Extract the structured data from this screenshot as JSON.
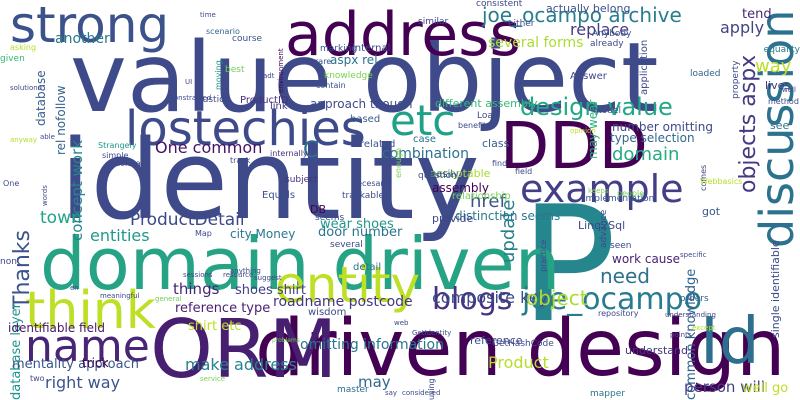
{
  "words": [
    {
      "text": "value object",
      "color": "#3e4a89",
      "vertical": false
    },
    {
      "text": "identity",
      "color": "#3e4a89",
      "vertical": false
    },
    {
      "text": "P",
      "color": "#25868e",
      "vertical": false
    },
    {
      "text": "domain driven",
      "color": "#26a384",
      "vertical": false
    },
    {
      "text": "driven design",
      "color": "#440154",
      "vertical": false
    },
    {
      "text": "ORM",
      "color": "#481f70",
      "vertical": false
    },
    {
      "text": "DDD",
      "color": "#440154",
      "vertical": false
    },
    {
      "text": "address",
      "color": "#440154",
      "vertical": false
    },
    {
      "text": "strong",
      "color": "#3b528b",
      "vertical": false
    },
    {
      "text": "lostechies",
      "color": "#3e4a89",
      "vertical": false
    },
    {
      "text": "entity",
      "color": "#bddf26",
      "vertical": false
    },
    {
      "text": "think",
      "color": "#bddf26",
      "vertical": false
    },
    {
      "text": "name",
      "color": "#482576",
      "vertical": false
    },
    {
      "text": "etc",
      "color": "#1fa187",
      "vertical": false
    },
    {
      "text": "example",
      "color": "#433e85",
      "vertical": false
    },
    {
      "text": "discussion",
      "color": "#2c728e",
      "vertical": true
    },
    {
      "text": "Id",
      "color": "#2e6e8e",
      "vertical": false
    },
    {
      "text": "joe_ocampo archive",
      "color": "#287d8e",
      "vertical": false
    },
    {
      "text": "blogs",
      "color": "#463480",
      "vertical": false
    },
    {
      "text": "joe_ocampo",
      "color": "#287c8e",
      "vertical": false
    },
    {
      "text": "design value",
      "color": "#22a884",
      "vertical": false
    },
    {
      "text": "Thanks",
      "color": "#3b528b",
      "vertical": true
    },
    {
      "text": "ProductDetail",
      "color": "#3e4989",
      "vertical": false
    },
    {
      "text": "entities",
      "color": "#1f9a8a",
      "vertical": false
    },
    {
      "text": "composite key",
      "color": "#3e4989",
      "vertical": false
    },
    {
      "text": "object",
      "color": "#addc30",
      "vertical": false
    },
    {
      "text": "objects aspx",
      "color": "#443983",
      "vertical": true
    },
    {
      "text": "update",
      "color": "#277f8e",
      "vertical": true
    },
    {
      "text": "make address",
      "color": "#26828e",
      "vertical": false
    },
    {
      "text": "right way",
      "color": "#39558c",
      "vertical": false
    },
    {
      "text": "domain",
      "color": "#25ab82",
      "vertical": false
    },
    {
      "text": "C",
      "color": "#2d708e",
      "vertical": false
    },
    {
      "text": "need",
      "color": "#2c718e",
      "vertical": false
    },
    {
      "text": "apply",
      "color": "#414487",
      "vertical": false
    },
    {
      "text": "way",
      "color": "#bddf26",
      "vertical": false
    },
    {
      "text": "replace",
      "color": "#443a83",
      "vertical": false
    },
    {
      "text": "several forms",
      "color": "#addc30",
      "vertical": false
    },
    {
      "text": "another",
      "color": "#29798e",
      "vertical": false
    },
    {
      "text": "One common",
      "color": "#471365",
      "vertical": false
    },
    {
      "text": "combination",
      "color": "#2c718e",
      "vertical": false
    },
    {
      "text": "things",
      "color": "#482576",
      "vertical": false
    },
    {
      "text": "town",
      "color": "#20a386",
      "vertical": false
    },
    {
      "text": "concept work",
      "color": "#25858e",
      "vertical": true
    },
    {
      "text": "database layer",
      "color": "#1f968b",
      "vertical": true
    },
    {
      "text": "database",
      "color": "#355f8d",
      "vertical": true
    },
    {
      "text": "rel nofollow",
      "color": "#33638d",
      "vertical": true
    },
    {
      "text": "common knowledge",
      "color": "#33638d",
      "vertical": true
    },
    {
      "text": "roadname postcode",
      "color": "#453781",
      "vertical": false
    },
    {
      "text": "omitting information",
      "color": "#2a768e",
      "vertical": false
    },
    {
      "text": "mentality approach",
      "color": "#39568c",
      "vertical": false
    },
    {
      "text": "identifiable field",
      "color": "#481769",
      "vertical": false
    },
    {
      "text": "shirt etc",
      "color": "#bddf26",
      "vertical": false
    },
    {
      "text": "shoes shirt",
      "color": "#433e85",
      "vertical": false
    },
    {
      "text": "reference type",
      "color": "#481f70",
      "vertical": false
    },
    {
      "text": "person will",
      "color": "#433e85",
      "vertical": false
    },
    {
      "text": "may",
      "color": "#31688e",
      "vertical": false
    },
    {
      "text": "Product",
      "color": "#b5de2b",
      "vertical": false
    },
    {
      "text": "href",
      "color": "#3b528b",
      "vertical": false
    },
    {
      "text": "work cause",
      "color": "#482475",
      "vertical": false
    },
    {
      "text": "door number",
      "color": "#2b748e",
      "vertical": false
    },
    {
      "text": "approach though",
      "color": "#3e4a89",
      "vertical": false
    },
    {
      "text": "number omitting",
      "color": "#3e4989",
      "vertical": false
    },
    {
      "text": "type selection",
      "color": "#31688e",
      "vertical": false
    },
    {
      "text": "wear shoes",
      "color": "#1f978b",
      "vertical": false
    },
    {
      "text": "city Money",
      "color": "#2a788e",
      "vertical": false
    },
    {
      "text": "aspx rel",
      "color": "#2c728e",
      "vertical": false
    },
    {
      "text": "tend",
      "color": "#482677",
      "vertical": false
    },
    {
      "text": "Linq2Sql",
      "color": "#3e4989",
      "vertical": false
    },
    {
      "text": "different assembly",
      "color": "#35b779",
      "vertical": false
    },
    {
      "text": "distinction seems",
      "color": "#2a788e",
      "vertical": false
    },
    {
      "text": "assembly",
      "color": "#440154",
      "vertical": false
    },
    {
      "text": "acceptable",
      "color": "#a8db34",
      "vertical": false
    },
    {
      "text": "relationship",
      "color": "#7ad151",
      "vertical": false
    },
    {
      "text": "well go",
      "color": "#bddf26",
      "vertical": false
    },
    {
      "text": "equality",
      "color": "#2a788e",
      "vertical": false
    },
    {
      "text": "internal",
      "color": "#404688",
      "vertical": false
    },
    {
      "text": "trick",
      "color": "#440154",
      "vertical": false
    },
    {
      "text": "class",
      "color": "#33638d",
      "vertical": false
    },
    {
      "text": "related",
      "color": "#3a548c",
      "vertical": false
    },
    {
      "text": "DB",
      "color": "#440154",
      "vertical": false
    },
    {
      "text": "ProductID",
      "color": "#46337e",
      "vertical": false
    },
    {
      "text": "Equals",
      "color": "#3b528b",
      "vertical": false
    },
    {
      "text": "case",
      "color": "#2d708e",
      "vertical": false
    },
    {
      "text": "based",
      "color": "#38598c",
      "vertical": false
    },
    {
      "text": "knowledge",
      "color": "#7ad151",
      "vertical": false
    },
    {
      "text": "link",
      "color": "#453781",
      "vertical": false
    },
    {
      "text": "may wear",
      "color": "#2db27d",
      "vertical": true
    },
    {
      "text": "understand",
      "color": "#46337e",
      "vertical": false
    },
    {
      "text": "provide",
      "color": "#3f4788",
      "vertical": false
    },
    {
      "text": "single identifiable",
      "color": "#3e4a89",
      "vertical": true
    },
    {
      "text": "actually belong",
      "color": "#3b528b",
      "vertical": false
    },
    {
      "text": "easily",
      "color": "#31688e",
      "vertical": false
    },
    {
      "text": "detail",
      "color": "#2d708e",
      "vertical": false
    },
    {
      "text": "wisdom",
      "color": "#3e4a89",
      "vertical": false
    },
    {
      "text": "implementation",
      "color": "#38598c",
      "vertical": false
    },
    {
      "text": "GetHashCode",
      "color": "#3e4989",
      "vertical": false
    },
    {
      "text": "trackable",
      "color": "#3e4a89",
      "vertical": false
    },
    {
      "text": "see",
      "color": "#2c728e",
      "vertical": false
    },
    {
      "text": "got",
      "color": "#38598c",
      "vertical": false
    },
    {
      "text": "lives",
      "color": "#46337e",
      "vertical": false
    },
    {
      "text": "reference",
      "color": "#3e4989",
      "vertical": false
    },
    {
      "text": "marking",
      "color": "#3b528b",
      "vertical": false
    },
    {
      "text": "Justice",
      "color": "#3e4989",
      "vertical": false
    },
    {
      "text": "best",
      "color": "#73d056",
      "vertical": false
    },
    {
      "text": "course",
      "color": "#3b528b",
      "vertical": false
    },
    {
      "text": "master",
      "color": "#2e6e8e",
      "vertical": false
    },
    {
      "text": "mapper",
      "color": "#2c728e",
      "vertical": false
    },
    {
      "text": "orders",
      "color": "#33638d",
      "vertical": false
    },
    {
      "text": "subject",
      "color": "#46337e",
      "vertical": false
    },
    {
      "text": "question",
      "color": "#3e4989",
      "vertical": false
    },
    {
      "text": "Anybody",
      "color": "#38598c",
      "vertical": false
    },
    {
      "text": "loaded",
      "color": "#35608d",
      "vertical": false
    },
    {
      "text": "consistent",
      "color": "#3e4a89",
      "vertical": false
    },
    {
      "text": "similar",
      "color": "#404688",
      "vertical": false
    },
    {
      "text": "either",
      "color": "#3e4989",
      "vertical": false
    },
    {
      "text": "already",
      "color": "#3e4a89",
      "vertical": false
    },
    {
      "text": "asking",
      "color": "#b5de2b",
      "vertical": false
    },
    {
      "text": "given",
      "color": "#35b779",
      "vertical": false
    },
    {
      "text": "solutions",
      "color": "#3e4989",
      "vertical": false
    },
    {
      "text": "time",
      "color": "#3e4a89",
      "vertical": false
    },
    {
      "text": "scenario",
      "color": "#31688e",
      "vertical": false
    },
    {
      "text": "moving",
      "color": "#1f9a8a",
      "vertical": true
    },
    {
      "text": "environment",
      "color": "#440154",
      "vertical": true
    },
    {
      "text": "rare",
      "color": "#3b528b",
      "vertical": false
    },
    {
      "text": "contain",
      "color": "#3b528b",
      "vertical": false
    },
    {
      "text": "Answer",
      "color": "#3e4989",
      "vertical": false
    },
    {
      "text": "application",
      "color": "#3e4989",
      "vertical": true
    },
    {
      "text": "property",
      "color": "#3e4a89",
      "vertical": true
    },
    {
      "text": "model",
      "color": "#3b528b",
      "vertical": false
    },
    {
      "text": "Load",
      "color": "#3e4989",
      "vertical": false
    },
    {
      "text": "benefits",
      "color": "#3e4989",
      "vertical": false
    },
    {
      "text": "opinion",
      "color": "#bddf26",
      "vertical": false
    },
    {
      "text": "find",
      "color": "#3e4a89",
      "vertical": false
    },
    {
      "text": "enough",
      "color": "#7ad151",
      "vertical": true
    },
    {
      "text": "comes",
      "color": "#3e4989",
      "vertical": true
    },
    {
      "text": "internally",
      "color": "#46337e",
      "vertical": false
    },
    {
      "text": "Strangely",
      "color": "#1f9a8a",
      "vertical": false
    },
    {
      "text": "simple",
      "color": "#3e4989",
      "vertical": false
    },
    {
      "text": "normal",
      "color": "#3e4989",
      "vertical": false
    },
    {
      "text": "One",
      "color": "#3e4a89",
      "vertical": false
    },
    {
      "text": "words",
      "color": "#3e4989",
      "vertical": true
    },
    {
      "text": "non",
      "color": "#3e4989",
      "vertical": false
    },
    {
      "text": "necesarry",
      "color": "#3e4989",
      "vertical": false
    },
    {
      "text": "field",
      "color": "#3e4989",
      "vertical": false
    },
    {
      "text": "seems",
      "color": "#3e4a89",
      "vertical": false
    },
    {
      "text": "keeps",
      "color": "#7ad151",
      "vertical": false
    },
    {
      "text": "Webbasics",
      "color": "#b5de2b",
      "vertical": false
    },
    {
      "text": "advance",
      "color": "#3e4a89",
      "vertical": true
    },
    {
      "text": "practice",
      "color": "#3e4989",
      "vertical": true
    },
    {
      "text": "seen",
      "color": "#3e4a89",
      "vertical": false
    },
    {
      "text": "people",
      "color": "#73d056",
      "vertical": false
    },
    {
      "text": "specific",
      "color": "#3e4989",
      "vertical": false
    },
    {
      "text": "Map",
      "color": "#3e4989",
      "vertical": false
    },
    {
      "text": "sessions",
      "color": "#3e4989",
      "vertical": false
    },
    {
      "text": "resource",
      "color": "#3e4989",
      "vertical": false
    },
    {
      "text": "anything",
      "color": "#3e4989",
      "vertical": false
    },
    {
      "text": "suggest",
      "color": "#3e4989",
      "vertical": false
    },
    {
      "text": "en",
      "color": "#3e4a89",
      "vertical": false
    },
    {
      "text": "meaningful",
      "color": "#3e4989",
      "vertical": false
    },
    {
      "text": "general",
      "color": "#73d056",
      "vertical": false
    },
    {
      "text": "web",
      "color": "#3e4989",
      "vertical": false
    },
    {
      "text": "GetIdentity",
      "color": "#3e4989",
      "vertical": false
    },
    {
      "text": "repository",
      "color": "#3e4989",
      "vertical": false
    },
    {
      "text": "understanding",
      "color": "#3e4989",
      "vertical": false
    },
    {
      "text": "points",
      "color": "#3e4989",
      "vertical": false
    },
    {
      "text": "except",
      "color": "#b5de2b",
      "vertical": false
    },
    {
      "text": "problems",
      "color": "#7ad151",
      "vertical": false
    },
    {
      "text": "two",
      "color": "#3e4989",
      "vertical": false
    },
    {
      "text": "service",
      "color": "#7ad151",
      "vertical": false
    },
    {
      "text": "say",
      "color": "#3e4989",
      "vertical": false
    },
    {
      "text": "considered",
      "color": "#3e4989",
      "vertical": false
    },
    {
      "text": "using",
      "color": "#3e4989",
      "vertical": true
    },
    {
      "text": "UI",
      "color": "#3e4989",
      "vertical": false
    },
    {
      "text": "adt",
      "color": "#3e4989",
      "vertical": false
    },
    {
      "text": "constrained",
      "color": "#3e4989",
      "vertical": false
    },
    {
      "text": "track",
      "color": "#3e4989",
      "vertical": false
    },
    {
      "text": "method",
      "color": "#3e4989",
      "vertical": false
    },
    {
      "text": "well",
      "color": "#3e4989",
      "vertical": false
    },
    {
      "text": "anyway",
      "color": "#b5de2b",
      "vertical": false
    },
    {
      "text": "able",
      "color": "#3e4989",
      "vertical": false
    },
    {
      "text": "several",
      "color": "#3e4989",
      "vertical": false
    }
  ]
}
